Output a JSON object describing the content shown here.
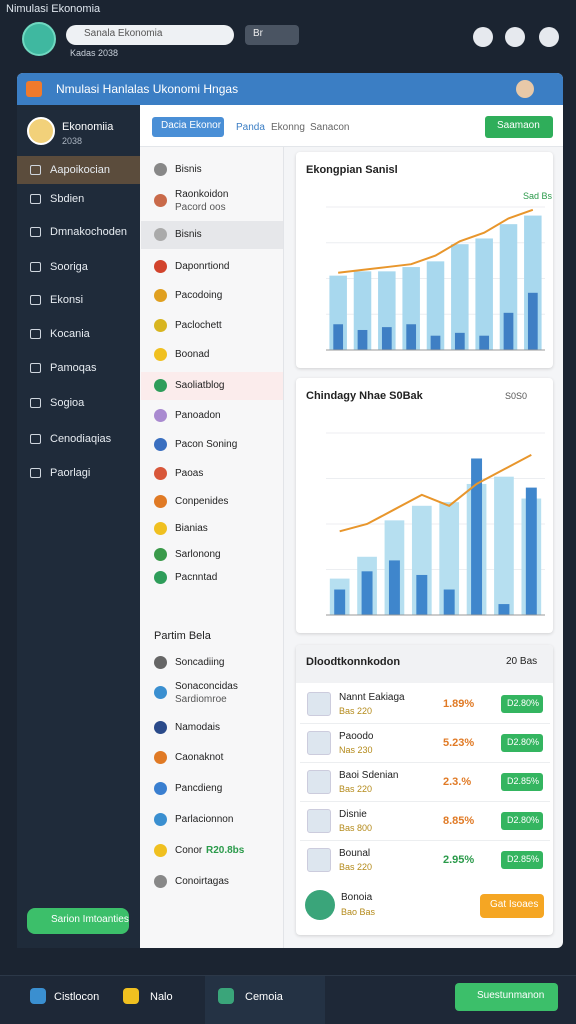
{
  "window_title": "Nimulasi Ekonomia",
  "top": {
    "search": "Sanala Ekonomia",
    "subtitle": "Kadas 2038",
    "dropdown": "Br"
  },
  "header": {
    "title": "Nmulasi Hanlalas Ukonomi Hngas"
  },
  "profile": {
    "name": "Ekonomiia",
    "sub": "2038"
  },
  "sidebar": {
    "items": [
      "Aapoikocian",
      "Sbdien",
      "Dmnakochoden",
      "Sooriga",
      "Ekonsi",
      "Kocania",
      "Pamoqas",
      "Sogioa",
      "Cenodiaqias",
      "Paorlagi"
    ],
    "button": "Sarion Imtoanties"
  },
  "toolbar": {
    "primary": "Dacia Ekonor",
    "tabs": [
      "Panda",
      "Ekonng",
      "Sanacon"
    ],
    "action": "Saamaon"
  },
  "list": {
    "items": [
      {
        "label": "Bisnis"
      },
      {
        "label": "Raonkoidon",
        "sub": "Pacord oos"
      },
      {
        "label": "Bisnis"
      },
      {
        "label": "Daponrtiond"
      },
      {
        "label": "Pacodoing"
      },
      {
        "label": "Paclochett"
      },
      {
        "label": "Boonad"
      },
      {
        "label": "Saoliatblog"
      },
      {
        "label": "Panoadon"
      },
      {
        "label": "Pacon Soning"
      },
      {
        "label": "Paoas"
      },
      {
        "label": "Conpenides"
      },
      {
        "label": "Bianias"
      },
      {
        "label": "Sarlonong"
      },
      {
        "label": "Pacnntad"
      }
    ],
    "section": "Partim Bela",
    "items2": [
      {
        "label": "Soncadiing"
      },
      {
        "label": "Sonaconcidas",
        "sub": "Sardiomroe"
      },
      {
        "label": "Namodais"
      },
      {
        "label": "Caonaknot"
      },
      {
        "label": "Pancdieng"
      },
      {
        "label": "Parlacionnon"
      },
      {
        "label": "Conor",
        "extra": "R20.8bs"
      },
      {
        "label": "Conoirtagas"
      }
    ]
  },
  "chart_data": [
    {
      "type": "bar",
      "title": "Ekongpian Sanisl",
      "note": "Sad Bs",
      "categories": [
        null,
        null,
        null,
        null,
        null,
        null,
        null,
        null,
        null
      ],
      "ylim": [
        0,
        100
      ],
      "series": [
        {
          "color": "#a8d8ee",
          "values": [
            52,
            55,
            55,
            58,
            62,
            74,
            78,
            88,
            94
          ]
        },
        {
          "color": "#3f7fc4",
          "values": [
            18,
            14,
            16,
            18,
            10,
            12,
            10,
            26,
            40
          ]
        },
        {
          "color": "#e8962c",
          "values": [
            54,
            56,
            58,
            60,
            66,
            76,
            82,
            92,
            98
          ]
        }
      ]
    },
    {
      "type": "bar",
      "title": "Chindagy Nhae S0Bak",
      "note": "S0S0",
      "categories": [
        null,
        null,
        null,
        null,
        null,
        null,
        null,
        null
      ],
      "ylim": [
        0,
        100
      ],
      "series": [
        {
          "color": "#b6dff0",
          "values": [
            20,
            32,
            52,
            60,
            62,
            72,
            76,
            64
          ]
        },
        {
          "color": "#3f86cc",
          "values": [
            14,
            24,
            30,
            22,
            14,
            86,
            6,
            70
          ]
        },
        {
          "color": "#e8962c",
          "values": [
            46,
            50,
            58,
            66,
            60,
            72,
            80,
            88
          ]
        }
      ]
    }
  ],
  "table": {
    "title": "Dloodtkonnkodon",
    "note": "20 Bas",
    "rows": [
      {
        "name": "Nannt Eakiaga",
        "sub": "Bas 220",
        "pct": "1.89%",
        "badge": "D2.80%"
      },
      {
        "name": "Paoodo",
        "sub": "Nas 230",
        "pct": "5.23%",
        "badge": "D2.80%"
      },
      {
        "name": "Baoi Sdenian",
        "sub": "Bas 220",
        "pct": "2.3.%",
        "badge": "D2.85%"
      },
      {
        "name": "Disnie",
        "sub": "Bas 800",
        "pct": "8.85%",
        "badge": "D2.80%"
      },
      {
        "name": "Bounal",
        "sub": "Bas 220",
        "pct": "2.95%",
        "badge": "D2.85%"
      }
    ],
    "footer": {
      "name": "Bonoia",
      "sub": "Bao Bas",
      "button": "Gat Isoaes"
    }
  },
  "bottom": {
    "items": [
      "Cistlocon",
      "Nalo",
      "Cemoia"
    ],
    "button": "Suestunmanon"
  }
}
